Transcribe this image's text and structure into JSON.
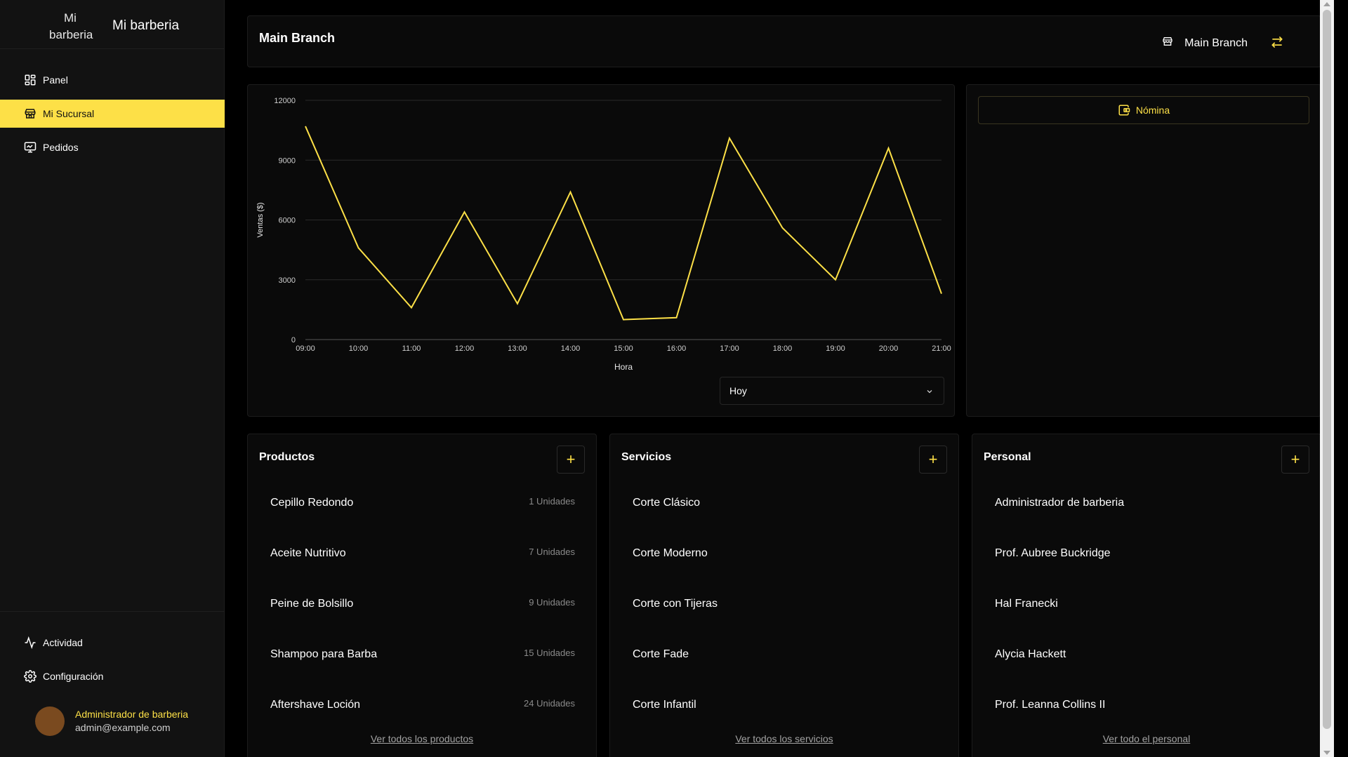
{
  "brand": {
    "logo_alt": "Mi barberia",
    "name": "Mi barberia"
  },
  "nav": {
    "items": [
      {
        "label": "Panel",
        "icon": "dashboard-icon"
      },
      {
        "label": "Mi Sucursal",
        "icon": "store-icon",
        "active": true
      },
      {
        "label": "Pedidos",
        "icon": "orders-icon"
      }
    ],
    "bottom": [
      {
        "label": "Actividad",
        "icon": "activity-icon"
      },
      {
        "label": "Configuración",
        "icon": "gear-icon"
      }
    ]
  },
  "user": {
    "name": "Administrador de barberia",
    "email": "admin@example.com"
  },
  "header": {
    "title": "Main Branch",
    "branch_label": "Main Branch"
  },
  "payroll": {
    "label": "Nómina"
  },
  "period_select": {
    "value": "Hoy"
  },
  "chart_data": {
    "type": "line",
    "x": [
      "09:00",
      "10:00",
      "11:00",
      "12:00",
      "13:00",
      "14:00",
      "15:00",
      "16:00",
      "17:00",
      "18:00",
      "19:00",
      "20:00",
      "21:00"
    ],
    "series": [
      {
        "values": [
          10700,
          4600,
          1600,
          6400,
          1800,
          7400,
          1000,
          1100,
          10100,
          5600,
          3000,
          9600,
          2300
        ]
      }
    ],
    "xlabel": "Hora",
    "ylabel": "Ventas ($)",
    "ylim": [
      0,
      12000
    ],
    "yticks": [
      0,
      3000,
      6000,
      9000,
      12000
    ],
    "grid": true,
    "color": "#fde047"
  },
  "products": {
    "title": "Productos",
    "items": [
      {
        "name": "Cepillo Redondo",
        "qty": "1 Unidades"
      },
      {
        "name": "Aceite Nutritivo",
        "qty": "7 Unidades"
      },
      {
        "name": "Peine de Bolsillo",
        "qty": "9 Unidades"
      },
      {
        "name": "Shampoo para Barba",
        "qty": "15 Unidades"
      },
      {
        "name": "Aftershave Loción",
        "qty": "24 Unidades"
      }
    ],
    "view_all": "Ver todos los productos"
  },
  "services": {
    "title": "Servicios",
    "items": [
      {
        "name": "Corte Clásico"
      },
      {
        "name": "Corte Moderno"
      },
      {
        "name": "Corte con Tijeras"
      },
      {
        "name": "Corte Fade"
      },
      {
        "name": "Corte Infantil"
      }
    ],
    "view_all": "Ver todos los servicios"
  },
  "staff": {
    "title": "Personal",
    "items": [
      {
        "name": "Administrador de barberia"
      },
      {
        "name": "Prof. Aubree Buckridge"
      },
      {
        "name": "Hal Franecki"
      },
      {
        "name": "Alycia Hackett"
      },
      {
        "name": "Prof. Leanna Collins II"
      }
    ],
    "view_all": "Ver todo el personal"
  }
}
